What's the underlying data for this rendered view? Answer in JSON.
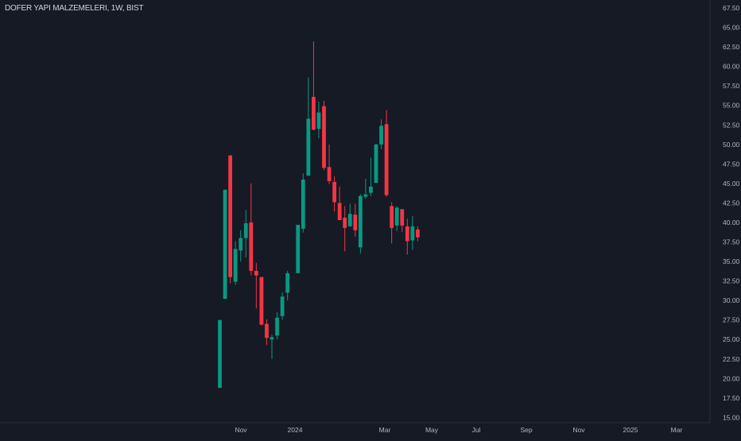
{
  "chart_data": {
    "type": "candlestick",
    "title": "DOFER YAPI MALZEMELERI, 1W, BIST",
    "x_ticks": [
      "Nov",
      "2024",
      "Mar",
      "May",
      "Jul",
      "Sep",
      "Nov",
      "2025",
      "Mar"
    ],
    "y_ticks": [
      "15.00",
      "17.50",
      "20.00",
      "22.50",
      "25.00",
      "27.50",
      "30.00",
      "32.50",
      "35.00",
      "37.50",
      "40.00",
      "42.50",
      "45.00",
      "47.50",
      "50.00",
      "52.50",
      "55.00",
      "57.50",
      "60.00",
      "62.50",
      "65.00",
      "67.50"
    ],
    "ylim": [
      15,
      67.5
    ],
    "colors": {
      "up": "#089981",
      "down": "#f23645",
      "background": "#161a25",
      "text": "#b2b5be"
    },
    "candles": [
      {
        "date": "2023-10-06",
        "open": 18.8,
        "high": 27.5,
        "low": 18.8,
        "close": 27.5
      },
      {
        "date": "2023-10-13",
        "open": 30.2,
        "high": 44.2,
        "low": 30.2,
        "close": 44.2
      },
      {
        "date": "2023-10-20",
        "open": 48.6,
        "high": 48.6,
        "low": 32.2,
        "close": 33.0
      },
      {
        "date": "2023-10-27",
        "open": 32.4,
        "high": 37.6,
        "low": 32.0,
        "close": 36.6
      },
      {
        "date": "2023-11-03",
        "open": 36.4,
        "high": 39.0,
        "low": 35.0,
        "close": 38.0
      },
      {
        "date": "2023-11-10",
        "open": 38.0,
        "high": 41.6,
        "low": 35.5,
        "close": 39.9
      },
      {
        "date": "2023-11-17",
        "open": 40.0,
        "high": 45.0,
        "low": 33.2,
        "close": 33.8
      },
      {
        "date": "2023-11-24",
        "open": 33.8,
        "high": 34.8,
        "low": 29.0,
        "close": 33.2
      },
      {
        "date": "2023-12-01",
        "open": 33.0,
        "high": 33.0,
        "low": 26.8,
        "close": 26.9
      },
      {
        "date": "2023-12-08",
        "open": 27.0,
        "high": 27.6,
        "low": 24.3,
        "close": 25.2
      },
      {
        "date": "2023-12-15",
        "open": 25.0,
        "high": 25.6,
        "low": 22.5,
        "close": 25.3
      },
      {
        "date": "2023-12-22",
        "open": 25.5,
        "high": 28.5,
        "low": 25.0,
        "close": 27.8
      },
      {
        "date": "2023-12-29",
        "open": 28.0,
        "high": 31.0,
        "low": 27.5,
        "close": 30.5
      },
      {
        "date": "2024-01-05",
        "open": 31.0,
        "high": 33.8,
        "low": 30.0,
        "close": 33.5
      },
      {
        "date": "2024-01-19",
        "open": 33.5,
        "high": 39.7,
        "low": 33.5,
        "close": 39.7
      },
      {
        "date": "2024-01-26",
        "open": 39.2,
        "high": 46.3,
        "low": 38.7,
        "close": 45.5
      },
      {
        "date": "2024-02-02",
        "open": 46.0,
        "high": 58.6,
        "low": 46.0,
        "close": 53.3
      },
      {
        "date": "2024-02-09",
        "open": 56.1,
        "high": 63.2,
        "low": 51.8,
        "close": 51.9
      },
      {
        "date": "2024-02-16",
        "open": 52.0,
        "high": 55.5,
        "low": 50.8,
        "close": 54.1
      },
      {
        "date": "2024-02-23",
        "open": 54.9,
        "high": 55.6,
        "low": 46.7,
        "close": 47.0
      },
      {
        "date": "2024-03-01",
        "open": 47.1,
        "high": 50.0,
        "low": 44.9,
        "close": 45.3
      },
      {
        "date": "2024-03-08",
        "open": 45.2,
        "high": 45.9,
        "low": 41.4,
        "close": 42.6
      },
      {
        "date": "2024-03-15",
        "open": 42.5,
        "high": 44.6,
        "low": 40.3,
        "close": 40.3
      },
      {
        "date": "2024-03-22",
        "open": 40.6,
        "high": 42.1,
        "low": 36.3,
        "close": 39.3
      },
      {
        "date": "2024-03-29",
        "open": 39.5,
        "high": 42.4,
        "low": 39.5,
        "close": 41.1
      },
      {
        "date": "2024-04-05",
        "open": 41.0,
        "high": 42.4,
        "low": 38.2,
        "close": 39.0
      },
      {
        "date": "2024-04-12",
        "open": 36.8,
        "high": 43.6,
        "low": 36.0,
        "close": 43.4
      },
      {
        "date": "2024-04-19",
        "open": 43.3,
        "high": 45.6,
        "low": 43.0,
        "close": 43.6
      },
      {
        "date": "2024-04-26",
        "open": 43.8,
        "high": 48.3,
        "low": 43.4,
        "close": 44.6
      },
      {
        "date": "2024-05-03",
        "open": 45.1,
        "high": 50.1,
        "low": 45.0,
        "close": 50.0
      },
      {
        "date": "2024-05-10",
        "open": 50.0,
        "high": 53.2,
        "low": 49.4,
        "close": 52.4
      },
      {
        "date": "2024-05-17",
        "open": 52.6,
        "high": 54.4,
        "low": 43.3,
        "close": 43.5
      },
      {
        "date": "2024-05-24",
        "open": 42.1,
        "high": 42.6,
        "low": 37.3,
        "close": 39.3
      },
      {
        "date": "2024-05-31",
        "open": 39.6,
        "high": 42.1,
        "low": 38.9,
        "close": 41.9
      },
      {
        "date": "2024-06-07",
        "open": 41.7,
        "high": 41.7,
        "low": 38.8,
        "close": 39.6
      },
      {
        "date": "2024-06-14",
        "open": 39.5,
        "high": 40.5,
        "low": 35.9,
        "close": 37.6
      },
      {
        "date": "2024-06-21",
        "open": 37.7,
        "high": 40.8,
        "low": 36.5,
        "close": 39.5
      },
      {
        "date": "2024-06-28",
        "open": 39.1,
        "high": 39.5,
        "low": 37.6,
        "close": 38.1
      }
    ]
  }
}
